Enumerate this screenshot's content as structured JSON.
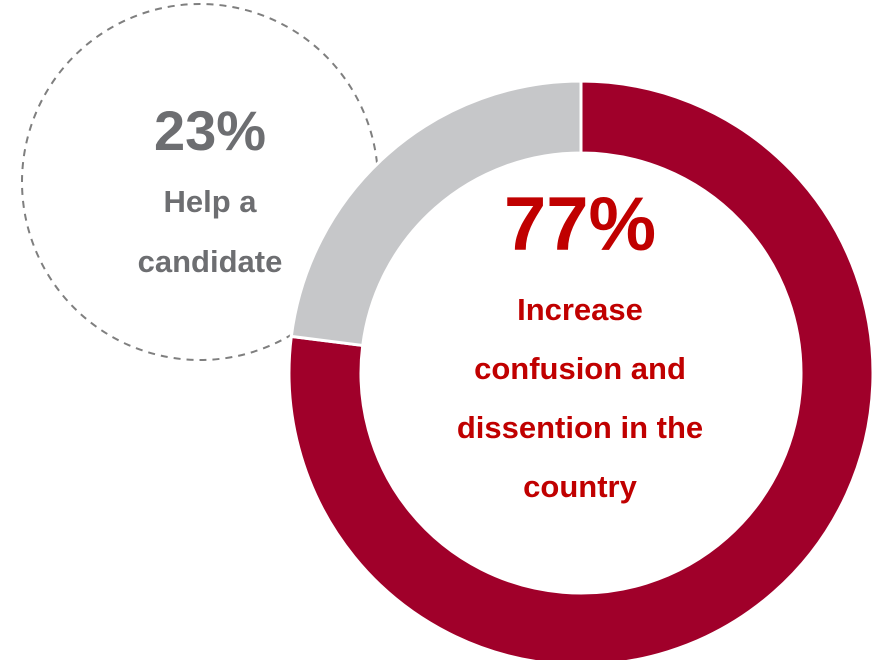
{
  "chart_data": {
    "type": "pie",
    "style": "donut",
    "categories": [
      "Increase confusion and dissention in the country",
      "Help a candidate"
    ],
    "values": [
      77,
      23
    ],
    "colors": [
      "#a0002a",
      "#c6c7c9"
    ],
    "data_labels": [
      {
        "value": "77%",
        "lines": [
          "Increase",
          "confusion and",
          "dissention in the",
          "country"
        ],
        "color": "#c00000"
      },
      {
        "value": "23%",
        "lines": [
          "Help a",
          "candidate"
        ],
        "color": "#6d6e71"
      }
    ],
    "callout": {
      "border": "dashed",
      "border_color": "#7f7f7f"
    }
  }
}
